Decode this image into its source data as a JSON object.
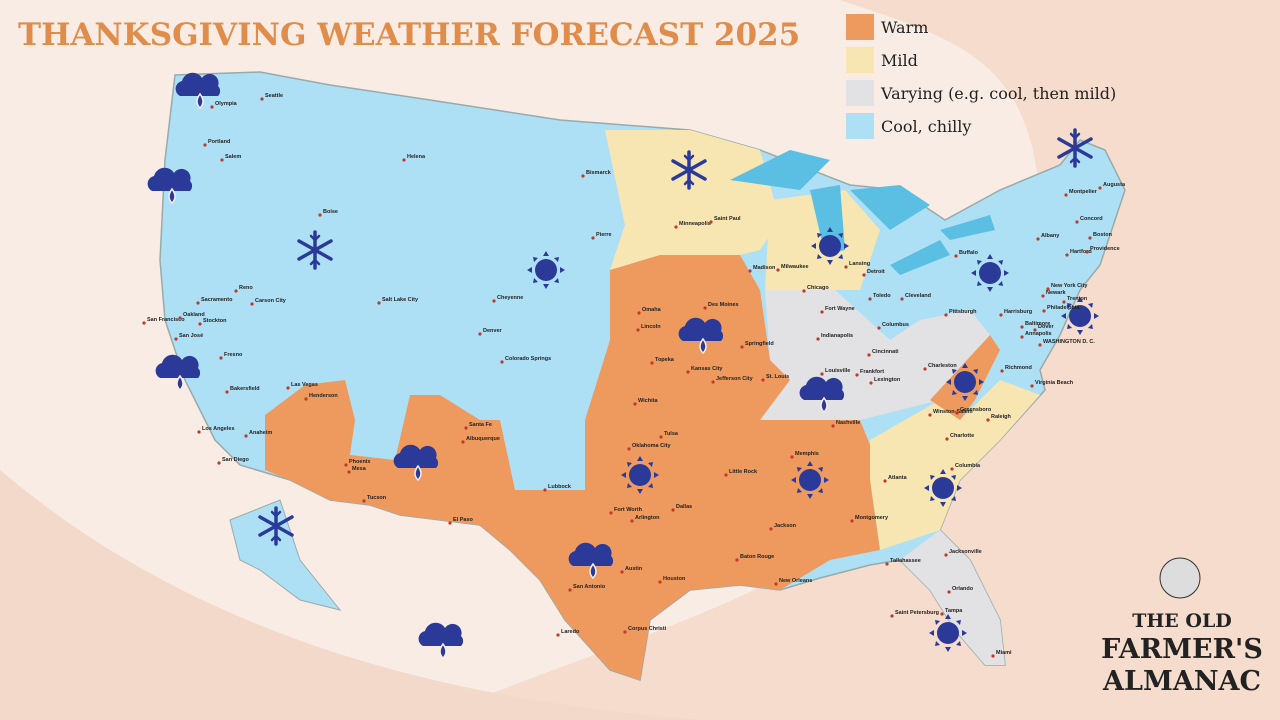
{
  "header": {
    "title": "THANKSGIVING WEATHER FORECAST 2025"
  },
  "legend": [
    {
      "label": "Warm",
      "color": "#ee9a5e"
    },
    {
      "label": "Mild",
      "color": "#f8e6b2"
    },
    {
      "label": "Varying (e.g. cool, then mild)",
      "color": "#e2e2e4"
    },
    {
      "label": "Cool, chilly",
      "color": "#aee0f5"
    }
  ],
  "cities": [
    "Seattle",
    "Olympia",
    "Portland",
    "Salem",
    "Helena",
    "Boise",
    "Bismarck",
    "Minneapolis",
    "Saint Paul",
    "Pierre",
    "Reno",
    "Sacramento",
    "Carson City",
    "Salt Lake City",
    "Cheyenne",
    "San Francisco",
    "Oakland",
    "Stockton",
    "San José",
    "Denver",
    "Fresno",
    "Omaha",
    "Lincoln",
    "Des Moines",
    "Colorado Springs",
    "Topeka",
    "Kansas City",
    "Jefferson City",
    "Springfield",
    "St. Louis",
    "Wichita",
    "Las Vegas",
    "Henderson",
    "Bakersfield",
    "Los Angeles",
    "Anaheim",
    "San Diego",
    "Santa Fe",
    "Albuquerque",
    "Phoenix",
    "Mesa",
    "Tucson",
    "El Paso",
    "Tulsa",
    "Oklahoma City",
    "Lubbock",
    "Fort Worth",
    "Dallas",
    "Arlington",
    "Memphis",
    "Little Rock",
    "Nashville",
    "Jackson",
    "Montgomery",
    "Atlanta",
    "Baton Rouge",
    "New Orleans",
    "Austin",
    "Houston",
    "San Antonio",
    "Laredo",
    "Corpus Christi",
    "Tallahassee",
    "Jacksonville",
    "Orlando",
    "Saint Petersburg",
    "Tampa",
    "Miami",
    "Madison",
    "Milwaukee",
    "Chicago",
    "Lansing",
    "Detroit",
    "Toledo",
    "Fort Wayne",
    "Cleveland",
    "Columbus",
    "Indianapolis",
    "Cincinnati",
    "Louisville",
    "Frankfort",
    "Lexington",
    "Charleston",
    "Richmond",
    "Virginia Beach",
    "Winston-Salem",
    "Greensboro",
    "Raleigh",
    "Charlotte",
    "Columbia",
    "Pittsburgh",
    "Harrisburg",
    "Baltimore",
    "Annapolis",
    "Dover",
    "WASHINGTON D. C.",
    "Philadelphia",
    "Trenton",
    "New York City",
    "Newark",
    "Buffalo",
    "Albany",
    "Hartford",
    "Providence",
    "Boston",
    "Concord",
    "Montpelier",
    "Augusta"
  ],
  "brand": {
    "line1": "THE OLD",
    "line2": "FARMER'S",
    "line3": "ALMANAC"
  }
}
